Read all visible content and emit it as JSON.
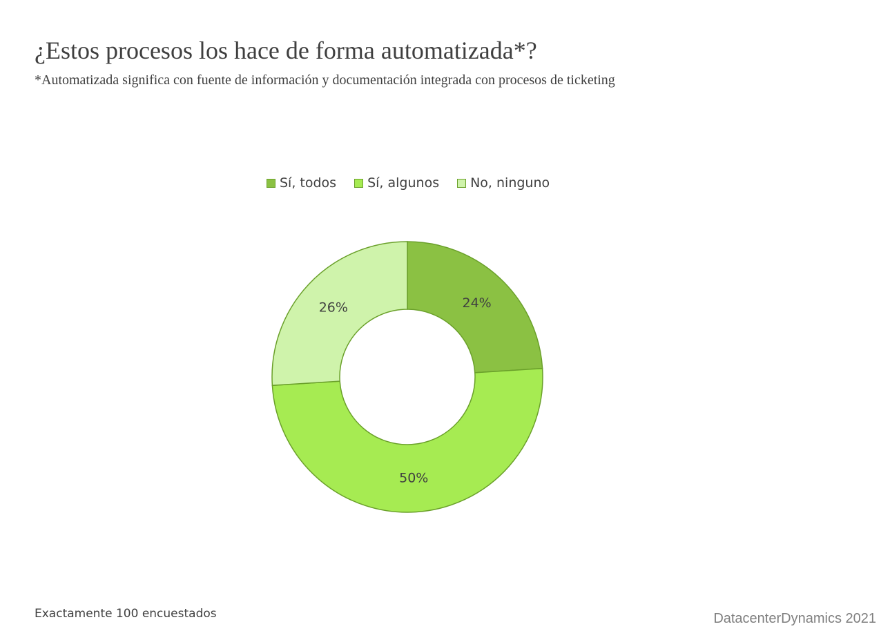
{
  "chart_data": {
    "type": "pie",
    "variant": "donut",
    "title": "¿Estos procesos los hace de forma automatizada*?",
    "subtitle": "*Automatizada significa con fuente de información y documentación integrada con procesos de ticketing",
    "categories": [
      "Sí, todos",
      "Sí, algunos",
      "No, ninguno"
    ],
    "values": [
      24,
      50,
      26
    ],
    "labels": [
      "24%",
      "50%",
      "26%"
    ],
    "colors": [
      "#8bc143",
      "#a6eb52",
      "#cff3ab"
    ],
    "legend_position": "top"
  },
  "footer": {
    "note": "Exactamente 100 encuestados",
    "source": "DatacenterDynamics 2021"
  }
}
